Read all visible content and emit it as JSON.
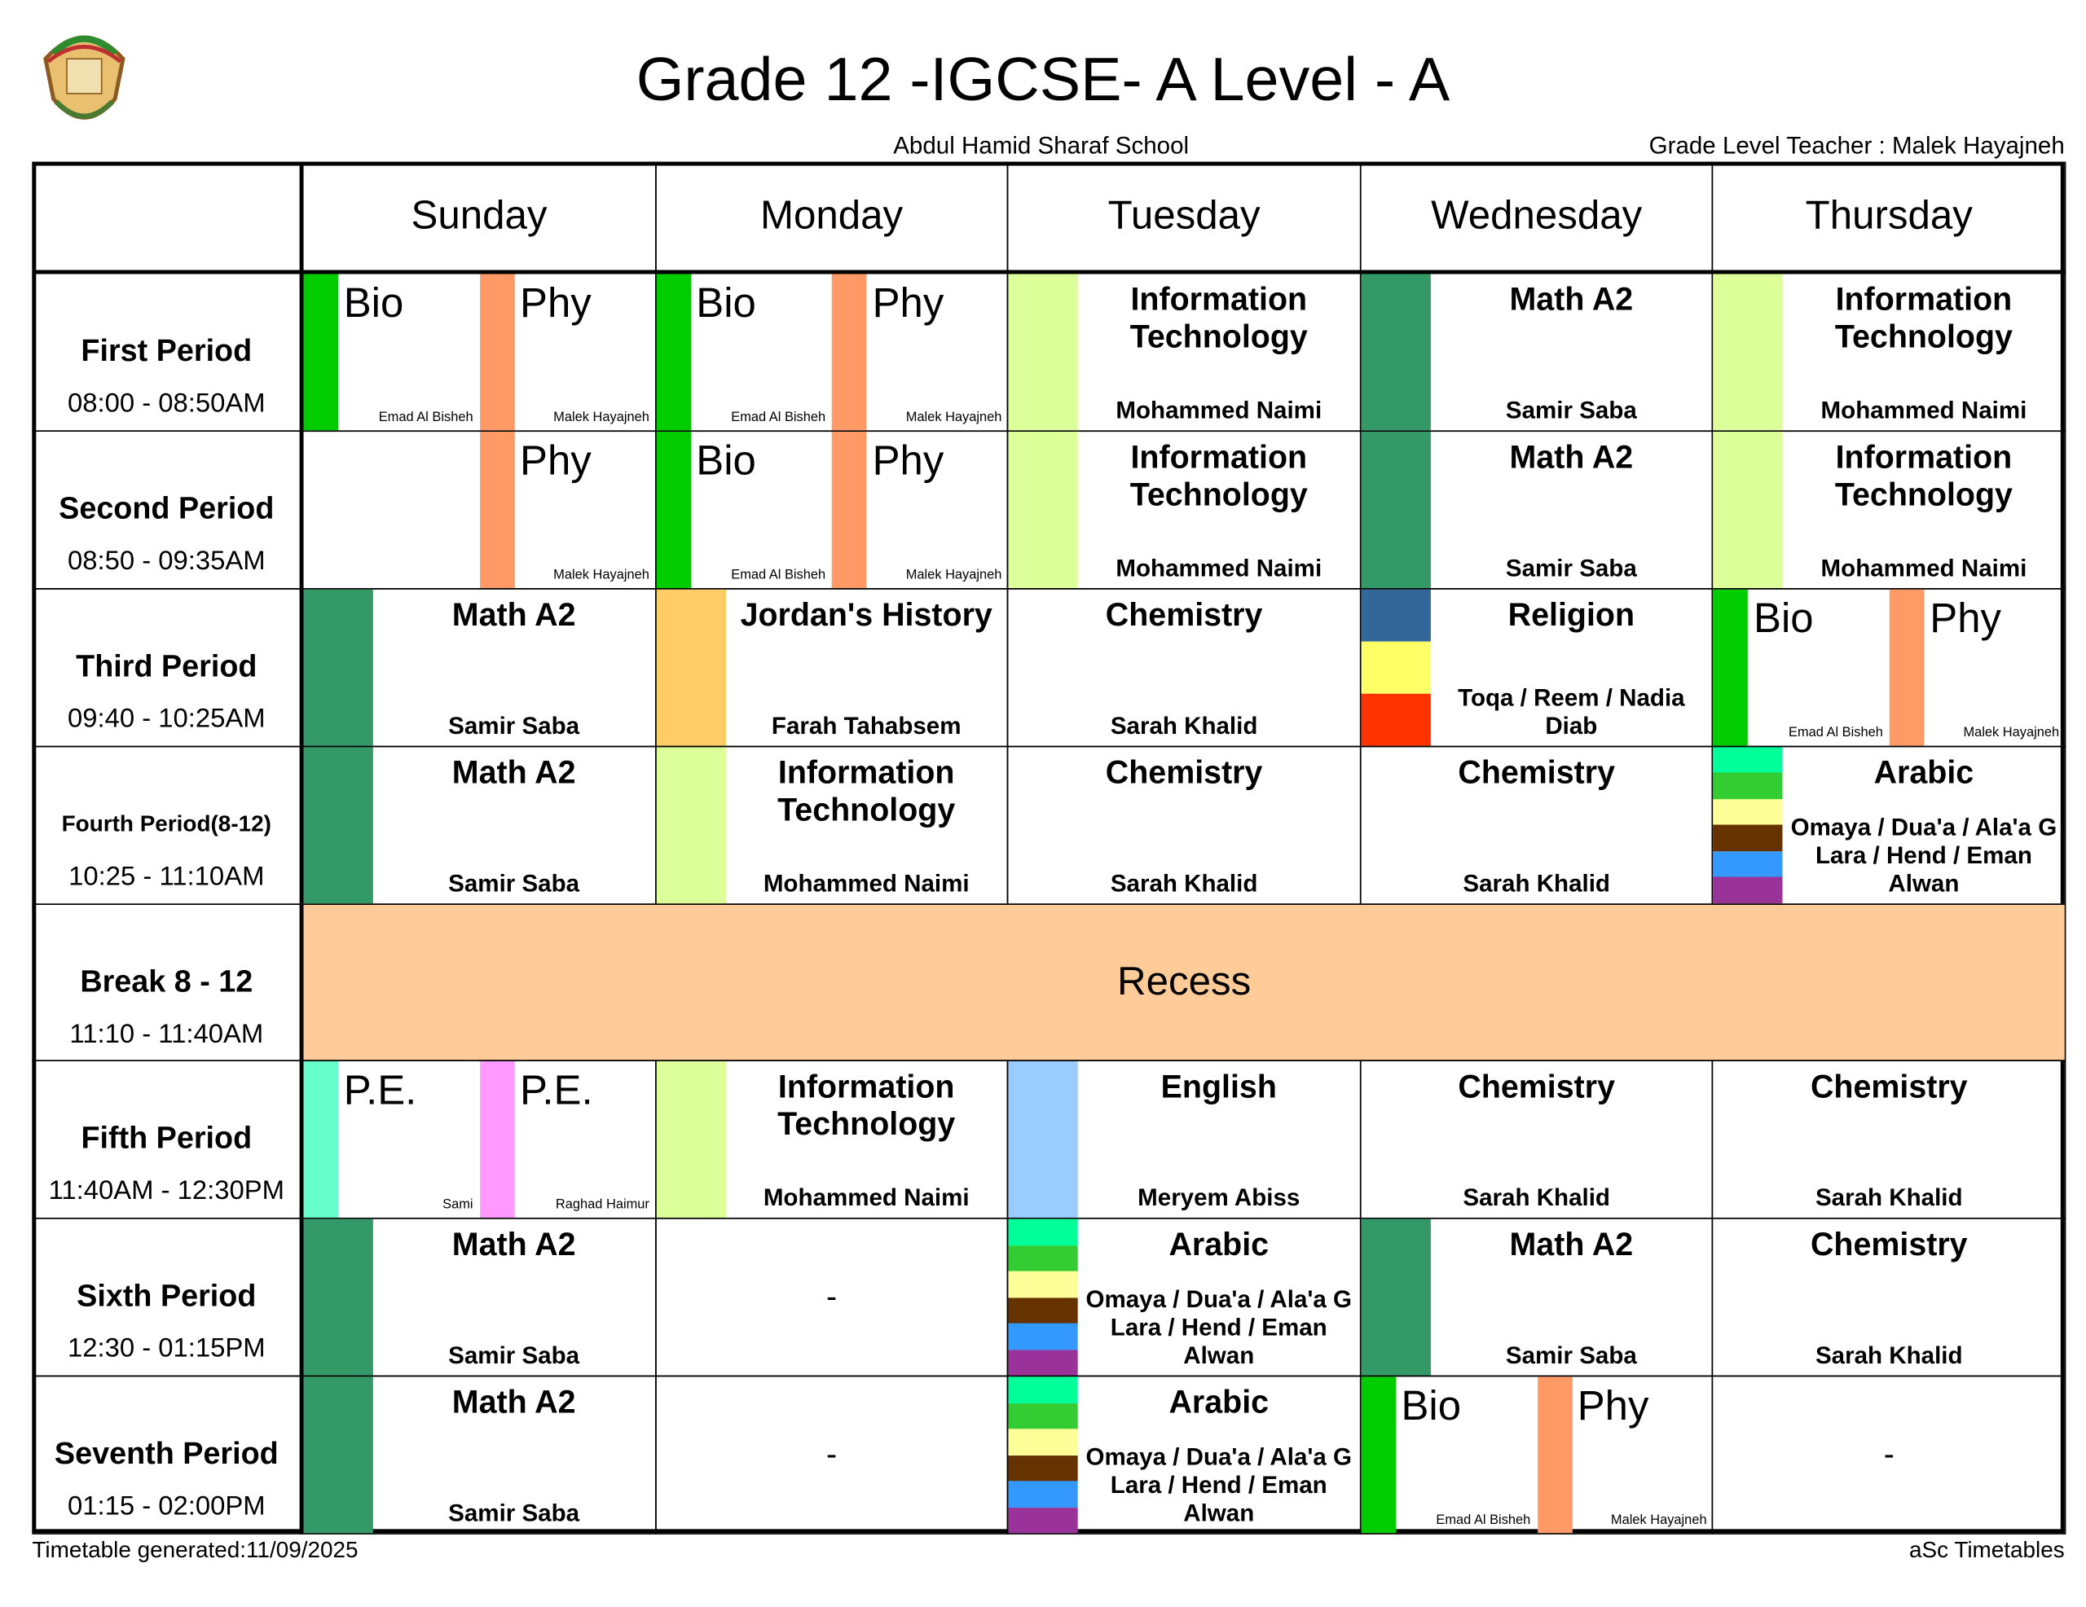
{
  "header": {
    "title": "Grade 12 -IGCSE- A Level - A",
    "school": "Abdul Hamid Sharaf School",
    "teacher": "Grade Level Teacher : Malek Hayajneh"
  },
  "days": [
    "Sunday",
    "Monday",
    "Tuesday",
    "Wednesday",
    "Thursday"
  ],
  "periods": [
    {
      "name": "First Period",
      "time": "08:00 - 08:50AM",
      "cells": [
        {
          "parts": [
            {
              "subject": "Bio",
              "teacher": "Emad Al Bisheh",
              "color": "#00cc00"
            },
            {
              "subject": "Phy",
              "teacher": "Malek Hayajneh",
              "color": "#ff9966"
            }
          ]
        },
        {
          "parts": [
            {
              "subject": "Bio",
              "teacher": "Emad Al Bisheh",
              "color": "#00cc00"
            },
            {
              "subject": "Phy",
              "teacher": "Malek Hayajneh",
              "color": "#ff9966"
            }
          ]
        },
        {
          "subject": "Information Technology",
          "teacher": "Mohammed Naimi",
          "colors": [
            "#ddff99"
          ]
        },
        {
          "subject": "Math A2",
          "teacher": "Samir Saba",
          "colors": [
            "#339966"
          ]
        },
        {
          "subject": "Information Technology",
          "teacher": "Mohammed Naimi",
          "colors": [
            "#ddff99"
          ]
        }
      ]
    },
    {
      "name": "Second Period",
      "time": "08:50 - 09:35AM",
      "cells": [
        {
          "parts": [
            null,
            {
              "subject": "Phy",
              "teacher": "Malek Hayajneh",
              "color": "#ff9966"
            }
          ]
        },
        {
          "parts": [
            {
              "subject": "Bio",
              "teacher": "Emad Al Bisheh",
              "color": "#00cc00"
            },
            {
              "subject": "Phy",
              "teacher": "Malek Hayajneh",
              "color": "#ff9966"
            }
          ]
        },
        {
          "subject": "Information Technology",
          "teacher": "Mohammed Naimi",
          "colors": [
            "#ddff99"
          ]
        },
        {
          "subject": "Math A2",
          "teacher": "Samir Saba",
          "colors": [
            "#339966"
          ]
        },
        {
          "subject": "Information Technology",
          "teacher": "Mohammed Naimi",
          "colors": [
            "#ddff99"
          ]
        }
      ]
    },
    {
      "name": "Third Period",
      "time": "09:40 - 10:25AM",
      "cells": [
        {
          "subject": "Math A2",
          "teacher": "Samir Saba",
          "colors": [
            "#339966"
          ]
        },
        {
          "subject": "Jordan's History",
          "teacher": "Farah Tahabsem",
          "colors": [
            "#ffcc66"
          ]
        },
        {
          "subject": "Chemistry",
          "teacher": "Sarah Khalid"
        },
        {
          "subject": "Religion",
          "teacher": "Toqa / Reem / Nadia Diab",
          "colors": [
            "#336699",
            "#ffff66",
            "#ff3300"
          ]
        },
        {
          "parts": [
            {
              "subject": "Bio",
              "teacher": "Emad Al Bisheh",
              "color": "#00cc00"
            },
            {
              "subject": "Phy",
              "teacher": "Malek Hayajneh",
              "color": "#ff9966"
            }
          ]
        }
      ]
    },
    {
      "name": "Fourth Period(8-12)",
      "time": "10:25 - 11:10AM",
      "cells": [
        {
          "subject": "Math A2",
          "teacher": "Samir Saba",
          "colors": [
            "#339966"
          ]
        },
        {
          "subject": "Information Technology",
          "teacher": "Mohammed Naimi",
          "colors": [
            "#ddff99"
          ]
        },
        {
          "subject": "Chemistry",
          "teacher": "Sarah Khalid"
        },
        {
          "subject": "Chemistry",
          "teacher": "Sarah Khalid"
        },
        {
          "subject": "Arabic",
          "teacher": "Omaya / Dua'a / Ala'a G Lara / Hend / Eman Alwan",
          "colors": [
            "#00ff99",
            "#33cc33",
            "#ffff99",
            "#663300",
            "#3399ff",
            "#993399"
          ]
        }
      ]
    },
    {
      "name": "Break 8 - 12",
      "time": "11:10 - 11:40AM",
      "recess": "Recess"
    },
    {
      "name": "Fifth Period",
      "time": "11:40AM - 12:30PM",
      "cells": [
        {
          "parts": [
            {
              "subject": "P.E.",
              "teacher": "Sami",
              "color": "#66ffcc"
            },
            {
              "subject": "P.E.",
              "teacher": "Raghad Haimur",
              "color": "#ff99ff"
            }
          ]
        },
        {
          "subject": "Information Technology",
          "teacher": "Mohammed Naimi",
          "colors": [
            "#ddff99"
          ]
        },
        {
          "subject": "English",
          "teacher": "Meryem Abiss",
          "colors": [
            "#99ccff"
          ]
        },
        {
          "subject": "Chemistry",
          "teacher": "Sarah Khalid"
        },
        {
          "subject": "Chemistry",
          "teacher": "Sarah Khalid"
        }
      ]
    },
    {
      "name": "Sixth Period",
      "time": "12:30 - 01:15PM",
      "cells": [
        {
          "subject": "Math A2",
          "teacher": "Samir Saba",
          "colors": [
            "#339966"
          ]
        },
        {
          "text": "-"
        },
        {
          "subject": "Arabic",
          "teacher": "Omaya / Dua'a / Ala'a G Lara / Hend / Eman Alwan",
          "colors": [
            "#00ff99",
            "#33cc33",
            "#ffff99",
            "#663300",
            "#3399ff",
            "#993399"
          ]
        },
        {
          "subject": "Math A2",
          "teacher": "Samir Saba",
          "colors": [
            "#339966"
          ]
        },
        {
          "subject": "Chemistry",
          "teacher": "Sarah Khalid"
        }
      ]
    },
    {
      "name": "Seventh Period",
      "time": "01:15 - 02:00PM",
      "cells": [
        {
          "subject": "Math A2",
          "teacher": "Samir Saba",
          "colors": [
            "#339966"
          ]
        },
        {
          "text": "-"
        },
        {
          "subject": "Arabic",
          "teacher": "Omaya / Dua'a / Ala'a G Lara / Hend / Eman Alwan",
          "colors": [
            "#00ff99",
            "#33cc33",
            "#ffff99",
            "#663300",
            "#3399ff",
            "#993399"
          ]
        },
        {
          "parts": [
            {
              "subject": "Bio",
              "teacher": "Emad Al Bisheh",
              "color": "#00cc00"
            },
            {
              "subject": "Phy",
              "teacher": "Malek Hayajneh",
              "color": "#ff9966"
            }
          ]
        },
        {
          "text": "-"
        }
      ]
    }
  ],
  "recess_color": "#ffcc99",
  "footer": {
    "generated": "Timetable generated:11/09/2025",
    "brand": "aSc Timetables"
  }
}
